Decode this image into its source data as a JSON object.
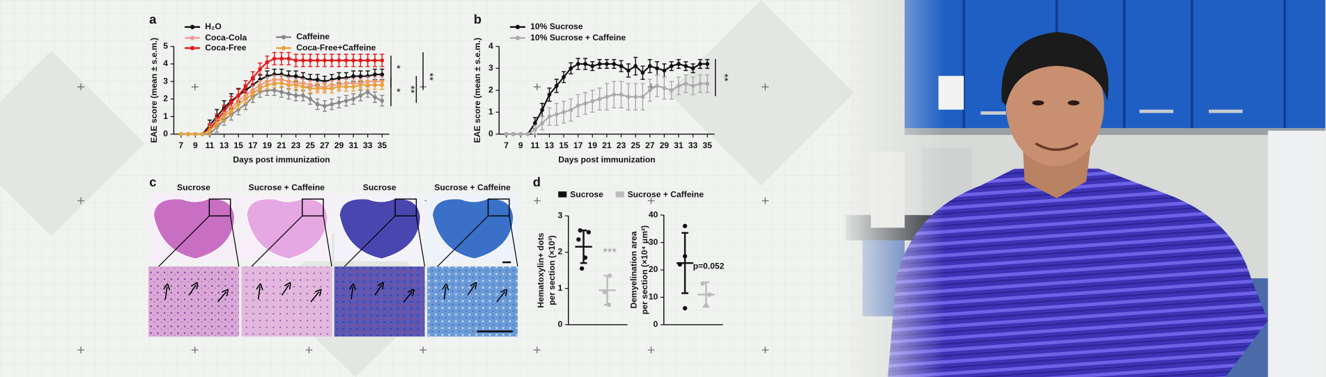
{
  "chart_data": [
    {
      "type": "line",
      "panel": "a",
      "ylabel": "EAE score (mean ± s.e.m.)",
      "xlabel": "Days post immunization",
      "x": [
        7,
        8,
        9,
        10,
        11,
        12,
        13,
        14,
        15,
        16,
        17,
        18,
        19,
        20,
        21,
        22,
        23,
        24,
        25,
        26,
        27,
        28,
        29,
        30,
        31,
        32,
        33,
        34,
        35
      ],
      "xlim": [
        6,
        36
      ],
      "xticks": [
        7,
        9,
        11,
        13,
        15,
        17,
        19,
        21,
        23,
        25,
        27,
        29,
        31,
        33,
        35
      ],
      "ylim": [
        0,
        5
      ],
      "yticks": [
        0,
        1,
        2,
        3,
        4,
        5
      ],
      "series": [
        {
          "name": "H₂O",
          "color": "#111111",
          "values": [
            0,
            0,
            0,
            0,
            0.5,
            1.0,
            1.5,
            1.9,
            2.2,
            2.5,
            2.8,
            3.1,
            3.3,
            3.4,
            3.4,
            3.3,
            3.3,
            3.2,
            3.1,
            3.1,
            3.0,
            3.1,
            3.2,
            3.2,
            3.3,
            3.3,
            3.3,
            3.4,
            3.4
          ],
          "errors": [
            0,
            0,
            0,
            0,
            0.3,
            0.4,
            0.4,
            0.4,
            0.4,
            0.3,
            0.3,
            0.3,
            0.3,
            0.3,
            0.3,
            0.3,
            0.3,
            0.3,
            0.3,
            0.3,
            0.3,
            0.3,
            0.3,
            0.3,
            0.3,
            0.3,
            0.3,
            0.3,
            0.3
          ]
        },
        {
          "name": "Coca-Cola",
          "color": "#f29a9a",
          "values": [
            0,
            0,
            0,
            0,
            0.3,
            0.7,
            1.1,
            1.5,
            1.9,
            2.2,
            2.5,
            2.8,
            3.0,
            3.1,
            3.1,
            3.0,
            2.9,
            2.9,
            2.8,
            2.7,
            2.7,
            2.8,
            2.8,
            2.9,
            2.9,
            2.9,
            3.0,
            3.0,
            3.0
          ],
          "errors": [
            0,
            0,
            0,
            0,
            0.25,
            0.25,
            0.25,
            0.25,
            0.25,
            0.25,
            0.25,
            0.25,
            0.25,
            0.25,
            0.25,
            0.25,
            0.25,
            0.25,
            0.25,
            0.25,
            0.25,
            0.25,
            0.25,
            0.25,
            0.25,
            0.25,
            0.25,
            0.25,
            0.25
          ]
        },
        {
          "name": "Coca-Free",
          "color": "#e31a1c",
          "values": [
            0,
            0,
            0,
            0,
            0.3,
            0.8,
            1.3,
            1.8,
            2.2,
            2.7,
            3.2,
            3.7,
            4.1,
            4.3,
            4.3,
            4.3,
            4.2,
            4.2,
            4.2,
            4.2,
            4.2,
            4.2,
            4.2,
            4.2,
            4.2,
            4.2,
            4.2,
            4.2,
            4.2
          ],
          "errors": [
            0,
            0,
            0,
            0,
            0.3,
            0.35,
            0.35,
            0.35,
            0.35,
            0.35,
            0.35,
            0.35,
            0.35,
            0.35,
            0.35,
            0.35,
            0.35,
            0.35,
            0.35,
            0.35,
            0.35,
            0.35,
            0.35,
            0.35,
            0.35,
            0.35,
            0.35,
            0.35,
            0.35
          ]
        },
        {
          "name": "Caffeine",
          "color": "#888888",
          "values": [
            0,
            0,
            0,
            0,
            0,
            0.4,
            0.8,
            1.1,
            1.4,
            1.7,
            2.1,
            2.4,
            2.5,
            2.5,
            2.4,
            2.3,
            2.2,
            2.2,
            2.0,
            1.7,
            1.6,
            1.7,
            1.8,
            1.9,
            2.0,
            2.2,
            2.4,
            2.1,
            1.9
          ],
          "errors": [
            0,
            0,
            0,
            0,
            0,
            0.3,
            0.3,
            0.3,
            0.3,
            0.3,
            0.3,
            0.3,
            0.3,
            0.3,
            0.3,
            0.3,
            0.3,
            0.3,
            0.3,
            0.3,
            0.3,
            0.3,
            0.3,
            0.3,
            0.3,
            0.3,
            0.3,
            0.3,
            0.3
          ]
        },
        {
          "name": "Coca-Free+Caffeine",
          "color": "#e8a23a",
          "values": [
            0,
            0,
            0,
            0,
            0.2,
            0.6,
            1.0,
            1.3,
            1.7,
            2.0,
            2.3,
            2.6,
            2.8,
            2.9,
            2.9,
            2.8,
            2.8,
            2.7,
            2.6,
            2.6,
            2.6,
            2.6,
            2.7,
            2.7,
            2.7,
            2.8,
            2.8,
            2.8,
            2.8
          ],
          "errors": [
            0,
            0,
            0,
            0,
            0.25,
            0.25,
            0.25,
            0.25,
            0.25,
            0.25,
            0.25,
            0.25,
            0.25,
            0.25,
            0.25,
            0.25,
            0.25,
            0.25,
            0.25,
            0.25,
            0.25,
            0.25,
            0.25,
            0.25,
            0.25,
            0.25,
            0.25,
            0.25,
            0.25
          ]
        }
      ],
      "annotations": [
        "*",
        "*",
        "**",
        "**"
      ]
    },
    {
      "type": "line",
      "panel": "b",
      "ylabel": "EAE score (mean ± s.e.m.)",
      "xlabel": "Days post immunization",
      "x": [
        7,
        8,
        9,
        10,
        11,
        12,
        13,
        14,
        15,
        16,
        17,
        18,
        19,
        20,
        21,
        22,
        23,
        24,
        25,
        26,
        27,
        28,
        29,
        30,
        31,
        32,
        33,
        34,
        35
      ],
      "xlim": [
        6,
        36
      ],
      "xticks": [
        7,
        9,
        11,
        13,
        15,
        17,
        19,
        21,
        23,
        25,
        27,
        29,
        31,
        33,
        35
      ],
      "ylim": [
        0,
        4
      ],
      "yticks": [
        0,
        1,
        2,
        3,
        4
      ],
      "series": [
        {
          "name": "10% Sucrose",
          "color": "#111111",
          "values": [
            0,
            0,
            0,
            0,
            0.5,
            1.1,
            1.8,
            2.2,
            2.6,
            3.0,
            3.2,
            3.2,
            3.1,
            3.2,
            3.2,
            3.2,
            3.1,
            2.9,
            3.1,
            2.8,
            3.1,
            3.0,
            2.9,
            3.1,
            3.2,
            3.1,
            3.0,
            3.2,
            3.2
          ],
          "errors": [
            0,
            0,
            0,
            0,
            0.25,
            0.3,
            0.3,
            0.3,
            0.25,
            0.25,
            0.25,
            0.25,
            0.2,
            0.2,
            0.2,
            0.2,
            0.25,
            0.3,
            0.4,
            0.3,
            0.3,
            0.3,
            0.3,
            0.2,
            0.2,
            0.2,
            0.2,
            0.2,
            0.2
          ]
        },
        {
          "name": "10% Sucrose + Caffeine",
          "color": "#aaaaaa",
          "values": [
            0,
            0,
            0,
            0,
            0.2,
            0.5,
            0.8,
            0.9,
            1.0,
            1.1,
            1.3,
            1.4,
            1.5,
            1.6,
            1.7,
            1.8,
            1.8,
            1.7,
            1.7,
            1.7,
            2.0,
            2.2,
            2.1,
            2.0,
            2.2,
            2.3,
            2.2,
            2.3,
            2.3
          ],
          "errors": [
            0,
            0,
            0,
            0,
            0.2,
            0.3,
            0.4,
            0.5,
            0.5,
            0.5,
            0.5,
            0.5,
            0.5,
            0.5,
            0.6,
            0.6,
            0.6,
            0.6,
            0.6,
            0.6,
            0.5,
            0.5,
            0.5,
            0.4,
            0.4,
            0.4,
            0.4,
            0.4,
            0.4
          ]
        }
      ],
      "annotations": [
        "**"
      ]
    },
    {
      "type": "dot",
      "panel": "d",
      "series": [
        {
          "name": "Sucrose",
          "color": "#111111",
          "points": [
            [
              2.6,
              2.55,
              2.35,
              1.85,
              1.55
            ],
            [
              36,
              25,
              22,
              6
            ]
          ],
          "mean": [
            2.15,
            22.5
          ],
          "sd": [
            0.45,
            11
          ]
        },
        {
          "name": "Sucrose + Caffeine",
          "color": "#bbbbbb",
          "points": [
            [
              1.35,
              0.9,
              0.55
            ],
            [
              15,
              11,
              7
            ]
          ],
          "mean": [
            0.95,
            11
          ],
          "sd": [
            0.4,
            4.5
          ]
        }
      ],
      "plots": [
        {
          "ylabel": [
            "Hematoxylin+ dots",
            "per section (×10³)"
          ],
          "ylim": [
            0,
            3
          ],
          "yticks": [
            0,
            1,
            2,
            3
          ],
          "annotation": "***"
        },
        {
          "ylabel": [
            "Demyelination area",
            "per section (×10⁴ μm²)"
          ],
          "ylim": [
            0,
            40
          ],
          "yticks": [
            0,
            10,
            20,
            30,
            40
          ],
          "annotation": "p=0.052"
        }
      ]
    }
  ],
  "histology": {
    "panel": "c",
    "labels": [
      "Sucrose",
      "Sucrose + Caffeine",
      "Sucrose",
      "Sucrose + Caffeine"
    ]
  }
}
